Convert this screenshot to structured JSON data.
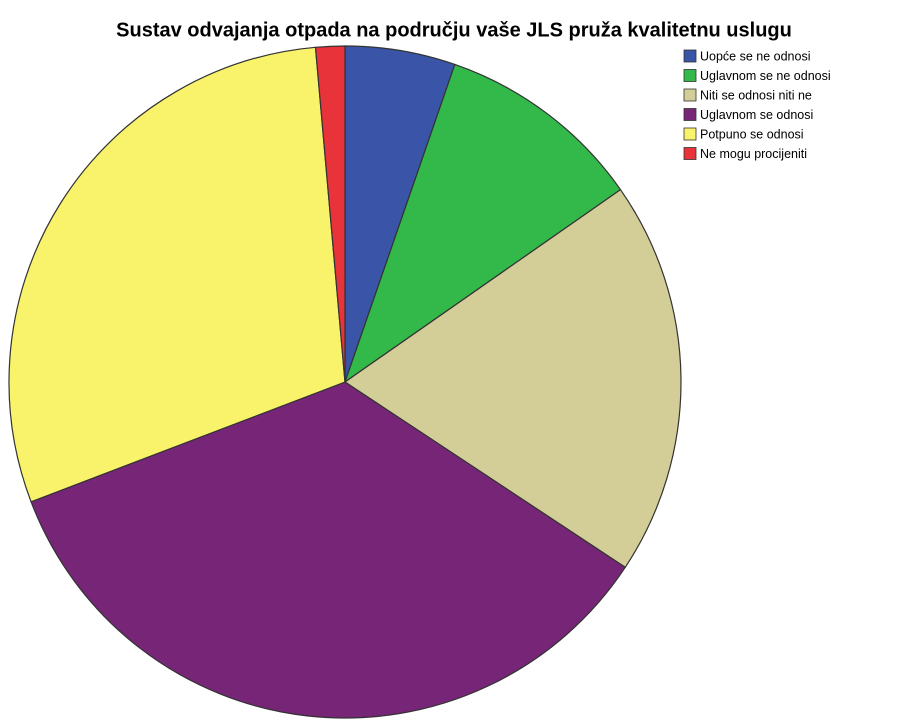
{
  "chart_data": {
    "type": "pie",
    "title": "Sustav odvajanja otpada na području vaše JLS pruža kvalitetnu uslugu",
    "categories": [
      "Uopće se ne odnosi",
      "Uglavnom se ne odnosi",
      "Niti se odnosi niti ne",
      "Uglavnom se odnosi",
      "Potpuno se odnosi",
      "Ne mogu procijeniti"
    ],
    "values": [
      5.3,
      10.0,
      19.0,
      34.9,
      29.4,
      1.4
    ],
    "colors": [
      "#3a55a8",
      "#33b84a",
      "#d3cd98",
      "#772577",
      "#f9f36b",
      "#e8333a"
    ],
    "legend": "top-right"
  }
}
